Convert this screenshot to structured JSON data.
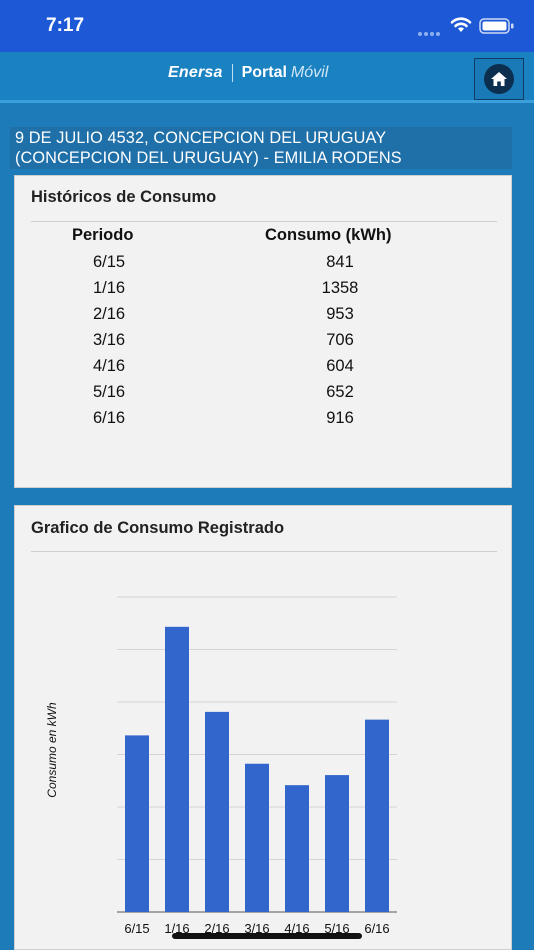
{
  "status_bar": {
    "time": "7:17"
  },
  "header": {
    "brand": "Enersa",
    "portal": "Portal",
    "movil": "Móvil"
  },
  "address": {
    "line1": "9 DE JULIO 4532, CONCEPCION DEL URUGUAY",
    "line2": "(CONCEPCION DEL URUGUAY) - EMILIA RODENS"
  },
  "historicos": {
    "title": "Históricos de Consumo",
    "col_periodo": "Periodo",
    "col_consumo": "Consumo (kWh)",
    "rows": [
      {
        "periodo": "6/15",
        "consumo": "841"
      },
      {
        "periodo": "1/16",
        "consumo": "1358"
      },
      {
        "periodo": "2/16",
        "consumo": "953"
      },
      {
        "periodo": "3/16",
        "consumo": "706"
      },
      {
        "periodo": "4/16",
        "consumo": "604"
      },
      {
        "periodo": "5/16",
        "consumo": "652"
      },
      {
        "periodo": "6/16",
        "consumo": "916"
      }
    ]
  },
  "grafico": {
    "title": "Grafico de Consumo Registrado"
  },
  "chart_data": {
    "type": "bar",
    "categories": [
      "6/15",
      "1/16",
      "2/16",
      "3/16",
      "4/16",
      "5/16",
      "6/16"
    ],
    "values": [
      841,
      1358,
      953,
      706,
      604,
      652,
      916
    ],
    "title": "",
    "xlabel": "",
    "ylabel": "Consumo en kWh",
    "ylim": [
      0,
      1500
    ],
    "grid": true,
    "bar_color": "#3366cc"
  },
  "colors": {
    "status_bar": "#1d59d7",
    "header": "#1b82c2",
    "background": "#1c7bb8",
    "card": "#f2f2f2"
  }
}
